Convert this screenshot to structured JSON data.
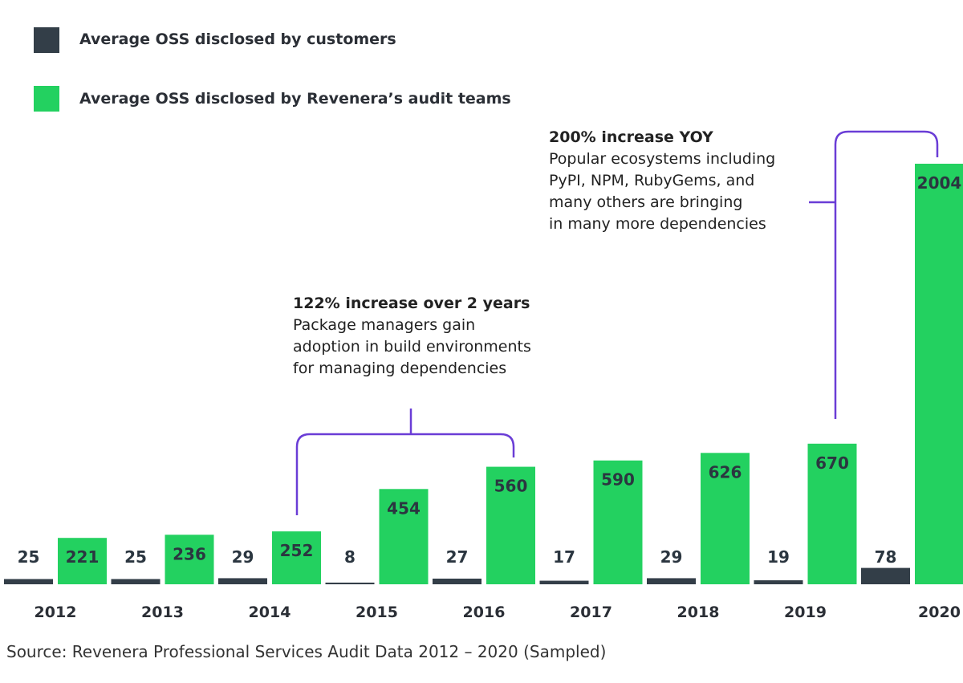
{
  "legend": {
    "customers_label": "Average OSS disclosed by customers",
    "audit_label": "Average OSS disclosed by Revenera’s audit teams"
  },
  "colors": {
    "customers": "#333e48",
    "audit": "#23d160",
    "bracket": "#6a3dd6",
    "value_text": "#2b3640"
  },
  "annotations": {
    "a1": {
      "heading": "122% increase over 2 years",
      "lines": [
        "Package managers gain",
        "adoption in build environments",
        "for managing dependencies"
      ]
    },
    "a2": {
      "heading": "200% increase YOY",
      "lines": [
        "Popular ecosystems including",
        "PyPI, NPM, RubyGems, and",
        "many others are bringing",
        "in many more dependencies"
      ]
    }
  },
  "source": "Source: Revenera Professional Services Audit Data 2012 – 2020 (Sampled)",
  "chart_data": {
    "type": "bar",
    "categories": [
      "2012",
      "2013",
      "2014",
      "2015",
      "2016",
      "2017",
      "2018",
      "2019",
      "2020"
    ],
    "series": [
      {
        "name": "Average OSS disclosed by customers",
        "values": [
          25,
          25,
          29,
          8,
          27,
          17,
          29,
          19,
          78
        ]
      },
      {
        "name": "Average OSS disclosed by Revenera’s audit teams",
        "values": [
          221,
          236,
          252,
          454,
          560,
          590,
          626,
          670,
          2004
        ]
      }
    ],
    "ylim": [
      0,
      2004
    ],
    "grid": false,
    "legend": "top-left"
  }
}
